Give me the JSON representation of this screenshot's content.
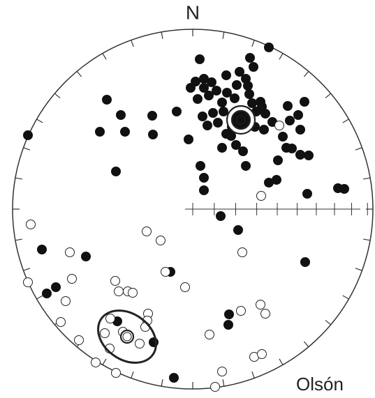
{
  "chart_data": {
    "type": "stereonet",
    "north_label": "N",
    "site_label": "Olsón",
    "xlim": [
      -258,
      258
    ],
    "ylim": [
      -258,
      258
    ],
    "series": [
      {
        "fill": "#111111",
        "stroke": "#111111",
        "x": [
          109,
          10,
          82,
          87,
          67,
          48,
          16,
          4,
          27,
          76,
          63,
          -3,
          16,
          34,
          49,
          79,
          81,
          85,
          97,
          99,
          7,
          23,
          42,
          60,
          69,
          44,
          29,
          14,
          21,
          36,
          56,
          91,
          104,
          102,
          114,
          136,
          160,
          151,
          139,
          154,
          129,
          142,
          166,
          154,
          134,
          122,
          109,
          120,
          48,
          55,
          62,
          72,
          76,
          42,
          11,
          16,
          16,
          -6,
          -23,
          -58,
          -57,
          -103,
          -97,
          -133,
          -123,
          -110,
          -236,
          208,
          217,
          164,
          40,
          65,
          161,
          -32,
          -153,
          -216,
          -196,
          -209,
          52,
          51,
          -108,
          -56,
          -27,
          89
        ],
        "y": [
          232,
          215,
          217,
          204,
          197,
          192,
          187,
          183,
          182,
          187,
          178,
          174,
          174,
          170,
          167,
          177,
          165,
          152,
          154,
          147,
          158,
          163,
          153,
          159,
          140,
          140,
          138,
          133,
          120,
          124,
          118,
          140,
          137,
          114,
          125,
          148,
          154,
          135,
          127,
          114,
          104,
          87,
          77,
          78,
          88,
          70,
          38,
          42,
          108,
          105,
          92,
          83,
          62,
          88,
          62,
          45,
          27,
          100,
          140,
          134,
          107,
          135,
          111,
          111,
          157,
          54,
          106,
          30,
          29,
          22,
          -10,
          -30,
          -76,
          -90,
          -68,
          -58,
          -112,
          -121,
          -151,
          -166,
          -161,
          -191,
          -242,
          118
        ]
      },
      {
        "fill": "#ffffff",
        "stroke": "#222222",
        "x": [
          98,
          124,
          -232,
          -66,
          -46,
          -176,
          71,
          -39,
          -236,
          -173,
          -111,
          -106,
          -93,
          -86,
          -182,
          -11,
          -64,
          -118,
          -65,
          97,
          69,
          104,
          -189,
          -68,
          -93,
          -76,
          -119,
          -163,
          24,
          -139,
          -110,
          42,
          88,
          99,
          32,
          -126,
          -100
        ],
        "y": [
          19,
          120,
          -22,
          -32,
          -45,
          -62,
          -62,
          -90,
          -105,
          -100,
          -103,
          -118,
          -118,
          -120,
          -132,
          -112,
          -150,
          -157,
          -160,
          -137,
          -146,
          -150,
          -162,
          -169,
          -183,
          -193,
          -200,
          -188,
          -180,
          -220,
          -235,
          -233,
          -212,
          -208,
          -255,
          -178,
          -176
        ]
      }
    ],
    "means": [
      {
        "x": 69,
        "y": 128,
        "radii": [
          13,
          20
        ],
        "fill": "#111111"
      },
      {
        "x": -94,
        "y": -183,
        "radii": [
          9
        ],
        "fill": "#ffffff",
        "rx": 45,
        "ry": 33,
        "angle": -35
      }
    ]
  }
}
